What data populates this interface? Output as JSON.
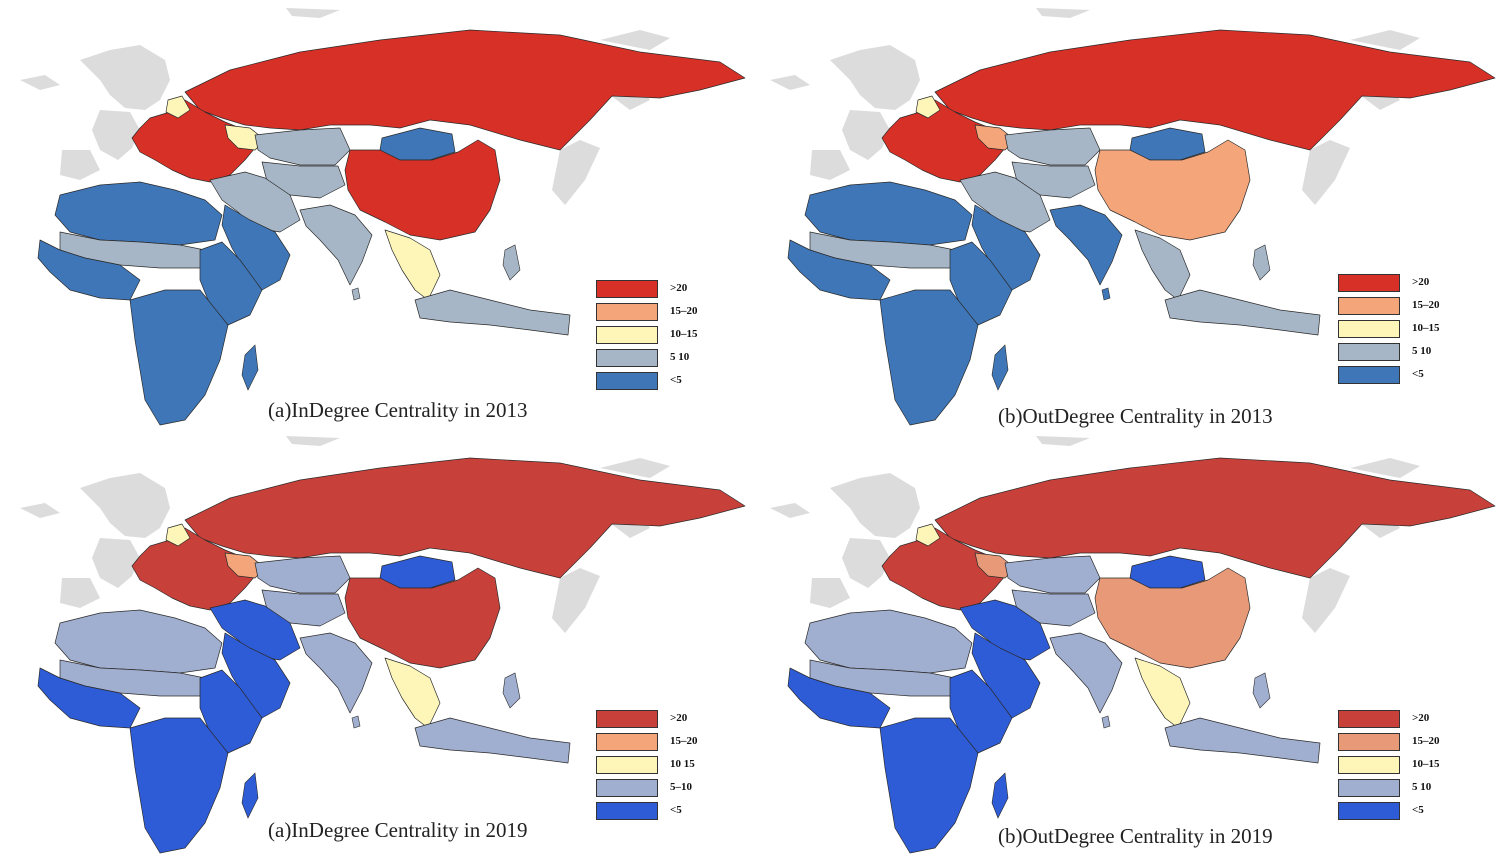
{
  "colors": {
    "background_land": "#dcdcdc",
    "sea": "#ffffff",
    "border": "#2b2b2b"
  },
  "panels": [
    {
      "id": "p1",
      "caption": "(a)InDegree Centrality in 2013",
      "palette": {
        "gt20": "#d63027",
        "c15_20": "#f4a57a",
        "c10_15": "#fdf6b8",
        "c5_10": "#a6b6c6",
        "lt5": "#3e76b8"
      },
      "legend": [
        ">20",
        "15–20",
        "10–15",
        "5 10",
        "<5"
      ],
      "classes": {
        "russia": "gt20",
        "china": "gt20",
        "europe": "gt20",
        "mongolia": "lt5",
        "central_asia": "c5_10",
        "kazakh": "c5_10",
        "turkey_iran": "c5_10",
        "arabia": "lt5",
        "india": "c5_10",
        "north_africa": "lt5",
        "sahel": "c5_10",
        "west_africa": "lt5",
        "east_africa": "lt5",
        "southern_africa": "lt5",
        "se_asia": "c10_15",
        "indonesia": "c5_10",
        "ukraine": "c10_15",
        "baltic": "c10_15"
      }
    },
    {
      "id": "p2",
      "caption": "(b)OutDegree Centrality in 2013",
      "palette": {
        "gt20": "#d63027",
        "c15_20": "#f4a57a",
        "c10_15": "#fdf6b8",
        "c5_10": "#a6b6c6",
        "lt5": "#3e76b8"
      },
      "legend": [
        ">20",
        "15–20",
        "10–15",
        "5 10",
        "<5"
      ],
      "classes": {
        "russia": "gt20",
        "china": "c15_20",
        "europe": "gt20",
        "mongolia": "lt5",
        "central_asia": "c5_10",
        "kazakh": "c5_10",
        "turkey_iran": "c5_10",
        "arabia": "lt5",
        "india": "lt5",
        "north_africa": "lt5",
        "sahel": "c5_10",
        "west_africa": "lt5",
        "east_africa": "lt5",
        "southern_africa": "lt5",
        "se_asia": "c5_10",
        "indonesia": "c5_10",
        "ukraine": "c15_20",
        "baltic": "c10_15"
      }
    },
    {
      "id": "p3",
      "caption": "(a)InDegree Centrality in 2019",
      "palette": {
        "gt20": "#c8403a",
        "c15_20": "#f4a57a",
        "c10_15": "#fdf6b8",
        "c5_10": "#a0aecf",
        "lt5": "#2e5bd6"
      },
      "legend": [
        ">20",
        "15–20",
        "10 15",
        "5–10",
        "<5"
      ],
      "classes": {
        "russia": "gt20",
        "china": "gt20",
        "europe": "gt20",
        "mongolia": "lt5",
        "central_asia": "c5_10",
        "kazakh": "c5_10",
        "turkey_iran": "lt5",
        "arabia": "lt5",
        "india": "c5_10",
        "north_africa": "c5_10",
        "sahel": "c5_10",
        "west_africa": "lt5",
        "east_africa": "lt5",
        "southern_africa": "lt5",
        "se_asia": "c10_15",
        "indonesia": "c5_10",
        "ukraine": "c15_20",
        "baltic": "c10_15"
      }
    },
    {
      "id": "p4",
      "caption": "(b)OutDegree Centrality in 2019",
      "palette": {
        "gt20": "#c8403a",
        "c15_20": "#e89a78",
        "c10_15": "#fdf6b8",
        "c5_10": "#a0aecf",
        "lt5": "#2e5bd6"
      },
      "legend": [
        ">20",
        "15–20",
        "10–15",
        "5 10",
        "<5"
      ],
      "classes": {
        "russia": "gt20",
        "china": "c15_20",
        "europe": "gt20",
        "mongolia": "lt5",
        "central_asia": "c5_10",
        "kazakh": "c5_10",
        "turkey_iran": "lt5",
        "arabia": "lt5",
        "india": "c5_10",
        "north_africa": "c5_10",
        "sahel": "c5_10",
        "west_africa": "lt5",
        "east_africa": "lt5",
        "southern_africa": "lt5",
        "se_asia": "c10_15",
        "indonesia": "c5_10",
        "ukraine": "c15_20",
        "baltic": "c10_15"
      }
    }
  ]
}
